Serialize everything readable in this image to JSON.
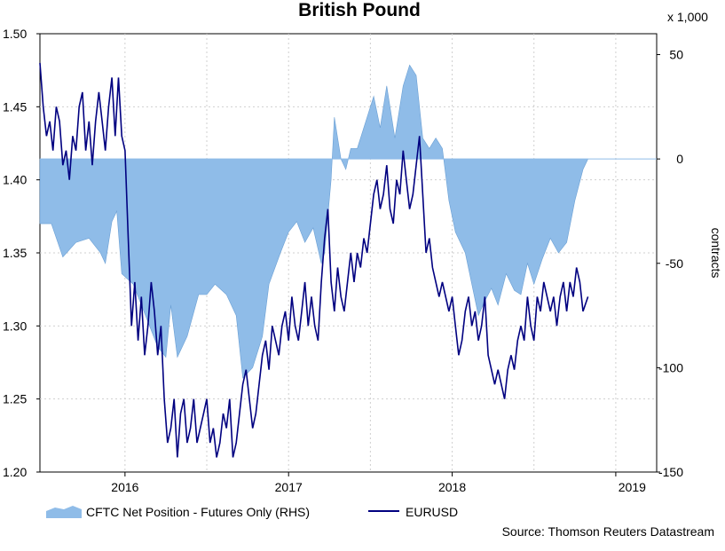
{
  "chart_data": {
    "type": "line",
    "title": "British Pound",
    "source": "Source: Thomson Reuters Datastream",
    "x_ticks": [
      "2016",
      "2017",
      "2018",
      "2019"
    ],
    "left_axis": {
      "label": "",
      "range": [
        1.2,
        1.5
      ],
      "ticks": [
        "1.20",
        "1.25",
        "1.30",
        "1.35",
        "1.40",
        "1.45",
        "1.50"
      ],
      "tick_values": [
        1.2,
        1.25,
        1.3,
        1.35,
        1.4,
        1.45,
        1.5
      ]
    },
    "right_axis": {
      "label": "contracts",
      "unit_label": "x 1,000",
      "range": [
        -150,
        60
      ],
      "ticks": [
        "50",
        "0",
        "-50",
        "-100",
        "-150"
      ],
      "tick_values": [
        50,
        0,
        -50,
        -100,
        -150
      ]
    },
    "x_range": [
      2015.48,
      2019.25
    ],
    "series": [
      {
        "name": "CFTC Net Position - Futures Only (RHS)",
        "kind": "area",
        "axis": "right",
        "color": "#8fbce8",
        "points": [
          [
            2015.48,
            -31
          ],
          [
            2015.55,
            -31
          ],
          [
            2015.62,
            -47
          ],
          [
            2015.7,
            -40
          ],
          [
            2015.78,
            -38
          ],
          [
            2015.85,
            -45
          ],
          [
            2015.88,
            -50
          ],
          [
            2015.92,
            -30
          ],
          [
            2015.95,
            -25
          ],
          [
            2015.98,
            -55
          ],
          [
            2016.05,
            -60
          ],
          [
            2016.1,
            -70
          ],
          [
            2016.15,
            -80
          ],
          [
            2016.2,
            -90
          ],
          [
            2016.25,
            -95
          ],
          [
            2016.28,
            -70
          ],
          [
            2016.32,
            -95
          ],
          [
            2016.38,
            -85
          ],
          [
            2016.45,
            -65
          ],
          [
            2016.5,
            -65
          ],
          [
            2016.55,
            -60
          ],
          [
            2016.62,
            -65
          ],
          [
            2016.68,
            -75
          ],
          [
            2016.72,
            -105
          ],
          [
            2016.78,
            -100
          ],
          [
            2016.84,
            -85
          ],
          [
            2016.88,
            -60
          ],
          [
            2016.95,
            -45
          ],
          [
            2017.0,
            -35
          ],
          [
            2017.05,
            -30
          ],
          [
            2017.1,
            -40
          ],
          [
            2017.15,
            -33
          ],
          [
            2017.2,
            -50
          ],
          [
            2017.22,
            -45
          ],
          [
            2017.26,
            -10
          ],
          [
            2017.28,
            20
          ],
          [
            2017.32,
            0
          ],
          [
            2017.35,
            -5
          ],
          [
            2017.38,
            5
          ],
          [
            2017.42,
            5
          ],
          [
            2017.46,
            15
          ],
          [
            2017.52,
            30
          ],
          [
            2017.56,
            15
          ],
          [
            2017.6,
            35
          ],
          [
            2017.65,
            10
          ],
          [
            2017.7,
            35
          ],
          [
            2017.74,
            45
          ],
          [
            2017.78,
            40
          ],
          [
            2017.82,
            10
          ],
          [
            2017.86,
            5
          ],
          [
            2017.9,
            10
          ],
          [
            2017.94,
            5
          ],
          [
            2017.98,
            -20
          ],
          [
            2018.02,
            -35
          ],
          [
            2018.08,
            -45
          ],
          [
            2018.12,
            -60
          ],
          [
            2018.16,
            -75
          ],
          [
            2018.2,
            -68
          ],
          [
            2018.24,
            -62
          ],
          [
            2018.28,
            -70
          ],
          [
            2018.33,
            -55
          ],
          [
            2018.38,
            -63
          ],
          [
            2018.42,
            -65
          ],
          [
            2018.46,
            -50
          ],
          [
            2018.5,
            -60
          ],
          [
            2018.55,
            -48
          ],
          [
            2018.6,
            -38
          ],
          [
            2018.65,
            -45
          ],
          [
            2018.7,
            -40
          ],
          [
            2018.75,
            -20
          ],
          [
            2018.8,
            -5
          ],
          [
            2018.83,
            0
          ]
        ]
      },
      {
        "name": "EURUSD",
        "kind": "line",
        "axis": "left",
        "color": "#000080",
        "points": [
          [
            2015.48,
            1.48
          ],
          [
            2015.5,
            1.45
          ],
          [
            2015.52,
            1.43
          ],
          [
            2015.54,
            1.44
          ],
          [
            2015.56,
            1.42
          ],
          [
            2015.58,
            1.45
          ],
          [
            2015.6,
            1.44
          ],
          [
            2015.62,
            1.41
          ],
          [
            2015.64,
            1.42
          ],
          [
            2015.66,
            1.4
          ],
          [
            2015.68,
            1.43
          ],
          [
            2015.7,
            1.42
          ],
          [
            2015.72,
            1.45
          ],
          [
            2015.74,
            1.46
          ],
          [
            2015.76,
            1.42
          ],
          [
            2015.78,
            1.44
          ],
          [
            2015.8,
            1.41
          ],
          [
            2015.82,
            1.44
          ],
          [
            2015.84,
            1.46
          ],
          [
            2015.86,
            1.44
          ],
          [
            2015.88,
            1.42
          ],
          [
            2015.9,
            1.45
          ],
          [
            2015.92,
            1.47
          ],
          [
            2015.94,
            1.43
          ],
          [
            2015.96,
            1.47
          ],
          [
            2015.98,
            1.43
          ],
          [
            2016.0,
            1.42
          ],
          [
            2016.02,
            1.36
          ],
          [
            2016.04,
            1.3
          ],
          [
            2016.06,
            1.33
          ],
          [
            2016.08,
            1.29
          ],
          [
            2016.1,
            1.32
          ],
          [
            2016.12,
            1.28
          ],
          [
            2016.14,
            1.3
          ],
          [
            2016.16,
            1.33
          ],
          [
            2016.18,
            1.31
          ],
          [
            2016.2,
            1.28
          ],
          [
            2016.22,
            1.3
          ],
          [
            2016.24,
            1.25
          ],
          [
            2016.26,
            1.22
          ],
          [
            2016.28,
            1.23
          ],
          [
            2016.3,
            1.25
          ],
          [
            2016.32,
            1.21
          ],
          [
            2016.34,
            1.24
          ],
          [
            2016.36,
            1.25
          ],
          [
            2016.38,
            1.22
          ],
          [
            2016.4,
            1.23
          ],
          [
            2016.42,
            1.25
          ],
          [
            2016.44,
            1.22
          ],
          [
            2016.46,
            1.23
          ],
          [
            2016.48,
            1.24
          ],
          [
            2016.5,
            1.25
          ],
          [
            2016.52,
            1.22
          ],
          [
            2016.54,
            1.23
          ],
          [
            2016.56,
            1.21
          ],
          [
            2016.58,
            1.22
          ],
          [
            2016.6,
            1.24
          ],
          [
            2016.62,
            1.23
          ],
          [
            2016.64,
            1.25
          ],
          [
            2016.66,
            1.21
          ],
          [
            2016.68,
            1.22
          ],
          [
            2016.7,
            1.24
          ],
          [
            2016.72,
            1.26
          ],
          [
            2016.74,
            1.27
          ],
          [
            2016.76,
            1.25
          ],
          [
            2016.78,
            1.23
          ],
          [
            2016.8,
            1.24
          ],
          [
            2016.82,
            1.26
          ],
          [
            2016.84,
            1.28
          ],
          [
            2016.86,
            1.29
          ],
          [
            2016.88,
            1.27
          ],
          [
            2016.9,
            1.3
          ],
          [
            2016.92,
            1.29
          ],
          [
            2016.94,
            1.28
          ],
          [
            2016.96,
            1.3
          ],
          [
            2016.98,
            1.31
          ],
          [
            2017.0,
            1.29
          ],
          [
            2017.02,
            1.32
          ],
          [
            2017.04,
            1.3
          ],
          [
            2017.06,
            1.29
          ],
          [
            2017.08,
            1.31
          ],
          [
            2017.1,
            1.33
          ],
          [
            2017.12,
            1.3
          ],
          [
            2017.14,
            1.32
          ],
          [
            2017.16,
            1.3
          ],
          [
            2017.18,
            1.29
          ],
          [
            2017.2,
            1.33
          ],
          [
            2017.22,
            1.36
          ],
          [
            2017.24,
            1.38
          ],
          [
            2017.26,
            1.33
          ],
          [
            2017.28,
            1.31
          ],
          [
            2017.3,
            1.34
          ],
          [
            2017.32,
            1.32
          ],
          [
            2017.34,
            1.31
          ],
          [
            2017.36,
            1.33
          ],
          [
            2017.38,
            1.35
          ],
          [
            2017.4,
            1.33
          ],
          [
            2017.42,
            1.35
          ],
          [
            2017.44,
            1.34
          ],
          [
            2017.46,
            1.36
          ],
          [
            2017.48,
            1.35
          ],
          [
            2017.5,
            1.37
          ],
          [
            2017.52,
            1.39
          ],
          [
            2017.54,
            1.4
          ],
          [
            2017.56,
            1.38
          ],
          [
            2017.58,
            1.39
          ],
          [
            2017.6,
            1.41
          ],
          [
            2017.62,
            1.38
          ],
          [
            2017.64,
            1.37
          ],
          [
            2017.66,
            1.4
          ],
          [
            2017.68,
            1.39
          ],
          [
            2017.7,
            1.42
          ],
          [
            2017.72,
            1.4
          ],
          [
            2017.74,
            1.38
          ],
          [
            2017.76,
            1.39
          ],
          [
            2017.78,
            1.41
          ],
          [
            2017.8,
            1.43
          ],
          [
            2017.82,
            1.39
          ],
          [
            2017.84,
            1.35
          ],
          [
            2017.86,
            1.36
          ],
          [
            2017.88,
            1.34
          ],
          [
            2017.9,
            1.33
          ],
          [
            2017.92,
            1.32
          ],
          [
            2017.94,
            1.33
          ],
          [
            2017.96,
            1.32
          ],
          [
            2017.98,
            1.31
          ],
          [
            2018.0,
            1.32
          ],
          [
            2018.02,
            1.3
          ],
          [
            2018.04,
            1.28
          ],
          [
            2018.06,
            1.29
          ],
          [
            2018.08,
            1.31
          ],
          [
            2018.1,
            1.32
          ],
          [
            2018.12,
            1.3
          ],
          [
            2018.14,
            1.31
          ],
          [
            2018.16,
            1.29
          ],
          [
            2018.18,
            1.3
          ],
          [
            2018.2,
            1.32
          ],
          [
            2018.22,
            1.28
          ],
          [
            2018.24,
            1.27
          ],
          [
            2018.26,
            1.26
          ],
          [
            2018.28,
            1.27
          ],
          [
            2018.3,
            1.26
          ],
          [
            2018.32,
            1.25
          ],
          [
            2018.34,
            1.27
          ],
          [
            2018.36,
            1.28
          ],
          [
            2018.38,
            1.27
          ],
          [
            2018.4,
            1.29
          ],
          [
            2018.42,
            1.3
          ],
          [
            2018.44,
            1.29
          ],
          [
            2018.46,
            1.32
          ],
          [
            2018.48,
            1.3
          ],
          [
            2018.5,
            1.29
          ],
          [
            2018.52,
            1.32
          ],
          [
            2018.54,
            1.31
          ],
          [
            2018.56,
            1.33
          ],
          [
            2018.58,
            1.32
          ],
          [
            2018.6,
            1.31
          ],
          [
            2018.62,
            1.32
          ],
          [
            2018.64,
            1.3
          ],
          [
            2018.66,
            1.32
          ],
          [
            2018.68,
            1.33
          ],
          [
            2018.7,
            1.31
          ],
          [
            2018.72,
            1.33
          ],
          [
            2018.74,
            1.32
          ],
          [
            2018.76,
            1.34
          ],
          [
            2018.78,
            1.33
          ],
          [
            2018.8,
            1.31
          ],
          [
            2018.83,
            1.32
          ]
        ]
      }
    ]
  }
}
